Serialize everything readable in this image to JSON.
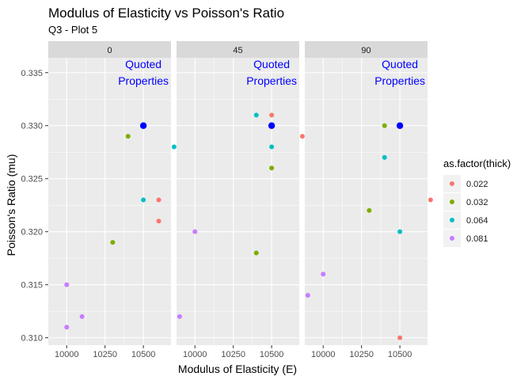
{
  "chart_data": {
    "type": "scatter",
    "title": "Modulus of Elasticity vs Poisson's Ratio",
    "subtitle": "Q3 - Plot 5",
    "xlabel": "Modulus of Elasticity (E)",
    "ylabel": "Poisson's Ratio (mu)",
    "xlim": [
      9880,
      10680
    ],
    "ylim": [
      0.3093,
      0.3364
    ],
    "x_ticks": [
      10000,
      10250,
      10500
    ],
    "x_tick_labels": [
      "10000",
      "10250",
      "10500"
    ],
    "y_ticks": [
      0.31,
      0.315,
      0.32,
      0.325,
      0.33,
      0.335
    ],
    "y_tick_labels": [
      "0.310",
      "0.315",
      "0.320",
      "0.325",
      "0.330",
      "0.335"
    ],
    "grid": true,
    "legend": {
      "title": "as.factor(thick)",
      "position": "right",
      "entries": [
        "0.022",
        "0.032",
        "0.064",
        "0.081"
      ]
    },
    "colors": {
      "0.022": "#F8766D",
      "0.032": "#7CAE00",
      "0.064": "#00BFC4",
      "0.081": "#C77CFF",
      "quoted": "#0000FF",
      "panel_bg": "#EBEBEB",
      "strip_bg": "#D9D9D9"
    },
    "annotation": {
      "lines": [
        "Quoted",
        "Properties"
      ],
      "x": 10500,
      "y": 0.33,
      "color": "#0000FF"
    },
    "facets": [
      {
        "label": "0",
        "points": [
          {
            "thick": "0.022",
            "x": 10600,
            "y": 0.323
          },
          {
            "thick": "0.022",
            "x": 10600,
            "y": 0.321
          },
          {
            "thick": "0.032",
            "x": 10400,
            "y": 0.329
          },
          {
            "thick": "0.032",
            "x": 10300,
            "y": 0.319
          },
          {
            "thick": "0.064",
            "x": 10700,
            "y": 0.328
          },
          {
            "thick": "0.064",
            "x": 10500,
            "y": 0.323
          },
          {
            "thick": "0.081",
            "x": 10000,
            "y": 0.315
          },
          {
            "thick": "0.081",
            "x": 10100,
            "y": 0.312
          },
          {
            "thick": "0.081",
            "x": 10000,
            "y": 0.311
          }
        ]
      },
      {
        "label": "45",
        "points": [
          {
            "thick": "0.022",
            "x": 10500,
            "y": 0.331
          },
          {
            "thick": "0.022",
            "x": 10700,
            "y": 0.329
          },
          {
            "thick": "0.032",
            "x": 10500,
            "y": 0.326
          },
          {
            "thick": "0.032",
            "x": 10400,
            "y": 0.318
          },
          {
            "thick": "0.064",
            "x": 10400,
            "y": 0.331
          },
          {
            "thick": "0.064",
            "x": 10500,
            "y": 0.328
          },
          {
            "thick": "0.081",
            "x": 10000,
            "y": 0.32
          },
          {
            "thick": "0.081",
            "x": 9900,
            "y": 0.312
          }
        ]
      },
      {
        "label": "90",
        "points": [
          {
            "thick": "0.022",
            "x": 10700,
            "y": 0.323
          },
          {
            "thick": "0.022",
            "x": 10500,
            "y": 0.31
          },
          {
            "thick": "0.032",
            "x": 10400,
            "y": 0.33
          },
          {
            "thick": "0.032",
            "x": 10300,
            "y": 0.322
          },
          {
            "thick": "0.064",
            "x": 10400,
            "y": 0.327
          },
          {
            "thick": "0.064",
            "x": 10500,
            "y": 0.32
          },
          {
            "thick": "0.081",
            "x": 10000,
            "y": 0.316
          },
          {
            "thick": "0.081",
            "x": 9900,
            "y": 0.314
          }
        ]
      }
    ]
  }
}
